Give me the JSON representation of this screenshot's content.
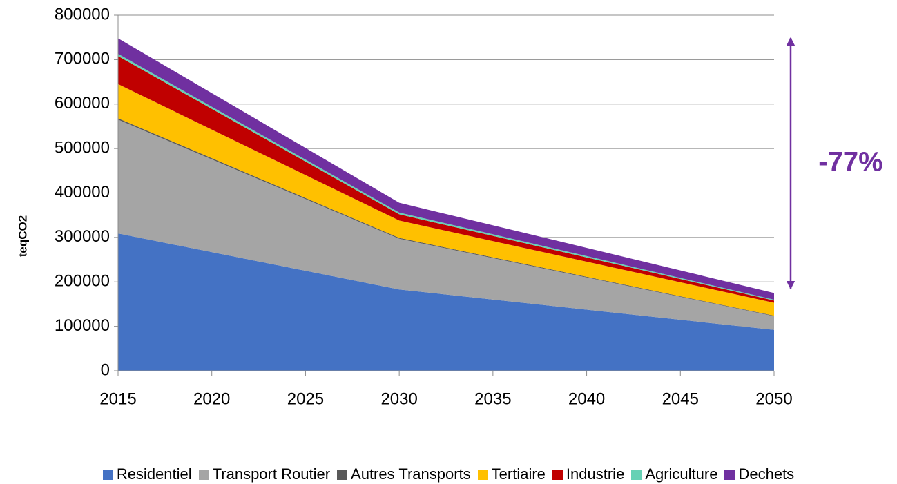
{
  "chart_data": {
    "type": "stacked_area",
    "y_label": "teqCO2",
    "annotation": "-77%",
    "x": [
      2015,
      2030,
      2050
    ],
    "xlim": [
      2015,
      2050
    ],
    "xticks": [
      2015,
      2020,
      2025,
      2030,
      2035,
      2040,
      2045,
      2050
    ],
    "ylim": [
      0,
      800000
    ],
    "yticks": [
      0,
      100000,
      200000,
      300000,
      400000,
      500000,
      600000,
      700000,
      800000
    ],
    "grid": true,
    "legend": "bottom",
    "series": [
      {
        "name": "Residentiel",
        "color": "#4472c4",
        "values": [
          309000,
          183000,
          92000
        ]
      },
      {
        "name": "Transport Routier",
        "color": "#a5a5a5",
        "values": [
          256000,
          114000,
          31000
        ]
      },
      {
        "name": "Autres Transports",
        "color": "#595959",
        "values": [
          3000,
          2000,
          1000
        ]
      },
      {
        "name": "Tertiaire",
        "color": "#ffc000",
        "values": [
          77000,
          39000,
          29000
        ]
      },
      {
        "name": "Industrie",
        "color": "#c00000",
        "values": [
          63000,
          14000,
          5000
        ]
      },
      {
        "name": "Agriculture",
        "color": "#66d1b5",
        "values": [
          5000,
          4000,
          2000
        ]
      },
      {
        "name": "Dechets",
        "color": "#7030a0",
        "values": [
          35000,
          22000,
          15000
        ]
      }
    ]
  }
}
